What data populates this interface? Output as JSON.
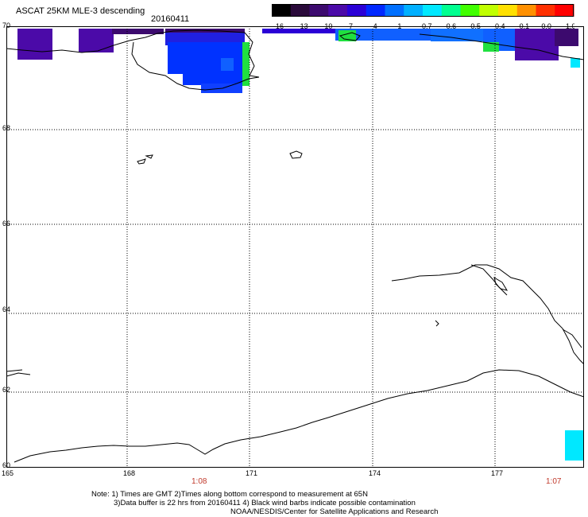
{
  "header": {
    "title": "ASCAT 25KM MLE-3 descending",
    "date": "20160411"
  },
  "colorbar": {
    "labels": [
      "-16",
      "-13",
      "-10",
      "-7",
      "-4",
      "-1",
      "-0.7",
      "-0.6",
      "-0.5",
      "-0.4",
      "-0.1",
      "0.0",
      "1.0"
    ],
    "colors": [
      "#000000",
      "#2a0a3a",
      "#3c0a6e",
      "#4b0aa8",
      "#2a00d6",
      "#0028ff",
      "#0070ff",
      "#00b0ff",
      "#00e8ff",
      "#00ff90",
      "#40ff00",
      "#c0ff00",
      "#ffe000",
      "#ff9000",
      "#ff3000",
      "#ff0000"
    ]
  },
  "axes": {
    "lat_labels": [
      "70",
      "68",
      "66",
      "64",
      "62",
      "60"
    ],
    "lon_labels": [
      "165",
      "168",
      "171",
      "174",
      "177"
    ],
    "time_left": "1:08",
    "time_right": "1:07"
  },
  "notes": {
    "line1": "Note: 1) Times are GMT 2)Times along bottom correspond to measurement at 65N",
    "line2": "3)Data buffer is 22 hrs from 20160411 4) Black wind barbs indicate possible contamination",
    "line3": "NOAA/NESDIS/Center for Satellite Applications and Research"
  },
  "map": {
    "grid": "dotted",
    "data_colors": {
      "purple": "#4b0aa8",
      "dark_purple": "#3c0a6e",
      "blue": "#0032ff",
      "mid_blue": "#1060ff",
      "light_blue": "#00a0ff",
      "cyan": "#00e8ff",
      "green": "#20e040"
    }
  }
}
